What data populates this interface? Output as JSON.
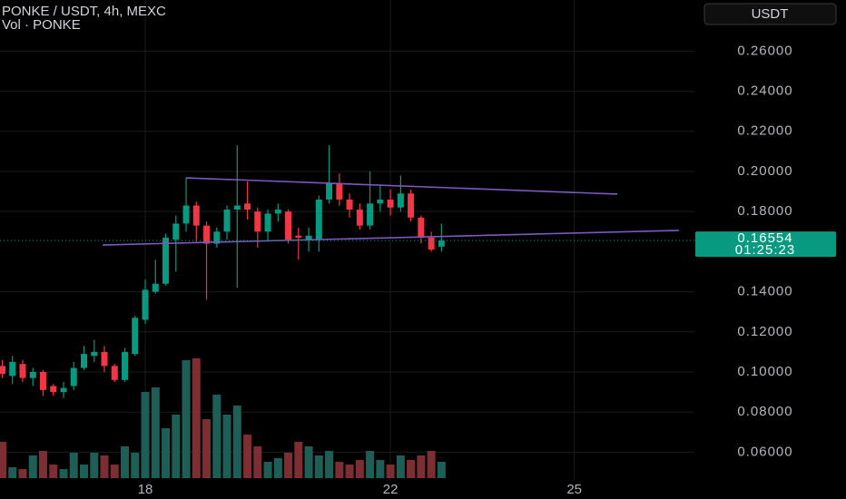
{
  "chart_data": {
    "type": "candlestick",
    "title": "PONKE / USDT, 4h, MEXC",
    "subtitle": "Vol · PONKE",
    "currency_button": "USDT",
    "x": [
      15.667,
      15.833,
      16,
      16.167,
      16.333,
      16.5,
      16.667,
      16.833,
      17,
      17.167,
      17.333,
      17.5,
      17.667,
      17.833,
      18,
      18.167,
      18.333,
      18.5,
      18.667,
      18.833,
      19,
      19.167,
      19.333,
      19.5,
      19.667,
      19.833,
      20,
      20.167,
      20.333,
      20.5,
      20.667,
      20.833,
      21,
      21.167,
      21.333,
      21.5,
      21.667,
      21.833,
      22,
      22.167,
      22.333,
      22.5,
      22.667,
      22.833
    ],
    "open": [
      0.103,
      0.098,
      0.104,
      0.097,
      0.1,
      0.093,
      0.09,
      0.093,
      0.102,
      0.108,
      0.11,
      0.103,
      0.096,
      0.109,
      0.126,
      0.14,
      0.144,
      0.166,
      0.174,
      0.183,
      0.173,
      0.164,
      0.17,
      0.181,
      0.184,
      0.18,
      0.17,
      0.179,
      0.18,
      0.168,
      0.166,
      0.166,
      0.186,
      0.194,
      0.186,
      0.181,
      0.173,
      0.184,
      0.186,
      0.182,
      0.189,
      0.177,
      0.167,
      0.1625
    ],
    "high": [
      0.106,
      0.108,
      0.106,
      0.102,
      0.101,
      0.094,
      0.095,
      0.105,
      0.113,
      0.116,
      0.113,
      0.104,
      0.112,
      0.128,
      0.146,
      0.156,
      0.169,
      0.178,
      0.197,
      0.185,
      0.175,
      0.172,
      0.183,
      0.213,
      0.195,
      0.182,
      0.181,
      0.184,
      0.181,
      0.172,
      0.172,
      0.188,
      0.213,
      0.199,
      0.189,
      0.184,
      0.2,
      0.193,
      0.191,
      0.198,
      0.191,
      0.178,
      0.17,
      0.174
    ],
    "low": [
      0.097,
      0.094,
      0.095,
      0.093,
      0.088,
      0.088,
      0.087,
      0.091,
      0.101,
      0.105,
      0.1,
      0.095,
      0.095,
      0.108,
      0.124,
      0.139,
      0.143,
      0.15,
      0.17,
      0.165,
      0.136,
      0.162,
      0.166,
      0.142,
      0.176,
      0.162,
      0.165,
      0.175,
      0.164,
      0.156,
      0.16,
      0.16,
      0.184,
      0.183,
      0.177,
      0.171,
      0.171,
      0.18,
      0.178,
      0.18,
      0.175,
      0.164,
      0.16,
      0.16
    ],
    "close": [
      0.099,
      0.105,
      0.097,
      0.1,
      0.091,
      0.09,
      0.092,
      0.102,
      0.109,
      0.11,
      0.103,
      0.096,
      0.11,
      0.127,
      0.141,
      0.144,
      0.167,
      0.174,
      0.183,
      0.173,
      0.164,
      0.17,
      0.181,
      0.183,
      0.181,
      0.17,
      0.179,
      0.181,
      0.166,
      0.167,
      0.168,
      0.186,
      0.194,
      0.186,
      0.181,
      0.173,
      0.184,
      0.186,
      0.182,
      0.189,
      0.177,
      0.167,
      0.161,
      0.16554
    ],
    "volume": [
      40,
      12,
      10,
      25,
      30,
      15,
      10,
      28,
      15,
      28,
      25,
      15,
      35,
      28,
      95,
      100,
      55,
      70,
      130,
      132,
      65,
      92,
      70,
      80,
      48,
      35,
      18,
      22,
      28,
      40,
      35,
      25,
      30,
      18,
      15,
      20,
      30,
      20,
      15,
      25,
      20,
      25,
      30,
      18
    ],
    "up_color": "#089981",
    "down_color": "#f23645",
    "volume_up_color": "#1d5f57",
    "volume_down_color": "#7c2e33",
    "last_price": 0.16554,
    "countdown": "01:25:23",
    "trendline_color": "#7e57c2",
    "trendlines": [
      {
        "x": [
          18.667,
          25.704
        ],
        "y": [
          0.1968,
          0.1887
        ]
      },
      {
        "x": [
          17.304,
          26.711
        ],
        "y": [
          0.1633,
          0.1706
        ]
      }
    ],
    "xlim": [
      15.63,
      26.96
    ],
    "ylim": [
      0.0457,
      0.2855
    ],
    "xticks": [
      18,
      22,
      25
    ],
    "yticks": [
      {
        "value": 0.06,
        "label": "0.06000"
      },
      {
        "value": 0.08,
        "label": "0.08000"
      },
      {
        "value": 0.1,
        "label": "0.10000"
      },
      {
        "value": 0.12,
        "label": "0.12000"
      },
      {
        "value": 0.14,
        "label": "0.14000"
      },
      {
        "value": 0.18,
        "label": "0.18000"
      },
      {
        "value": 0.2,
        "label": "0.20000"
      },
      {
        "value": 0.22,
        "label": "0.22000"
      },
      {
        "value": 0.24,
        "label": "0.24000"
      },
      {
        "value": 0.26,
        "label": "0.26000"
      }
    ],
    "grid": true
  }
}
